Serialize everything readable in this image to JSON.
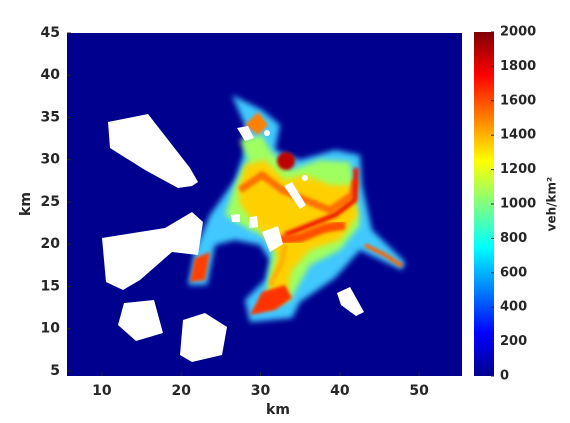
{
  "chart_data": {
    "type": "heatmap",
    "colormap": "jet",
    "x_label": "km",
    "y_label": "km",
    "colorbar_label": "veh/km²",
    "xlim": [
      5.6,
      55.4
    ],
    "xticks": [
      10,
      20,
      30,
      40,
      50
    ],
    "ylim": [
      4.4,
      45
    ],
    "yticks": [
      5,
      10,
      15,
      20,
      25,
      30,
      35,
      40,
      45
    ],
    "zlim": [
      0,
      2000
    ],
    "zticks": [
      0,
      200,
      400,
      600,
      800,
      1000,
      1200,
      1400,
      1600,
      1800,
      2000
    ]
  }
}
